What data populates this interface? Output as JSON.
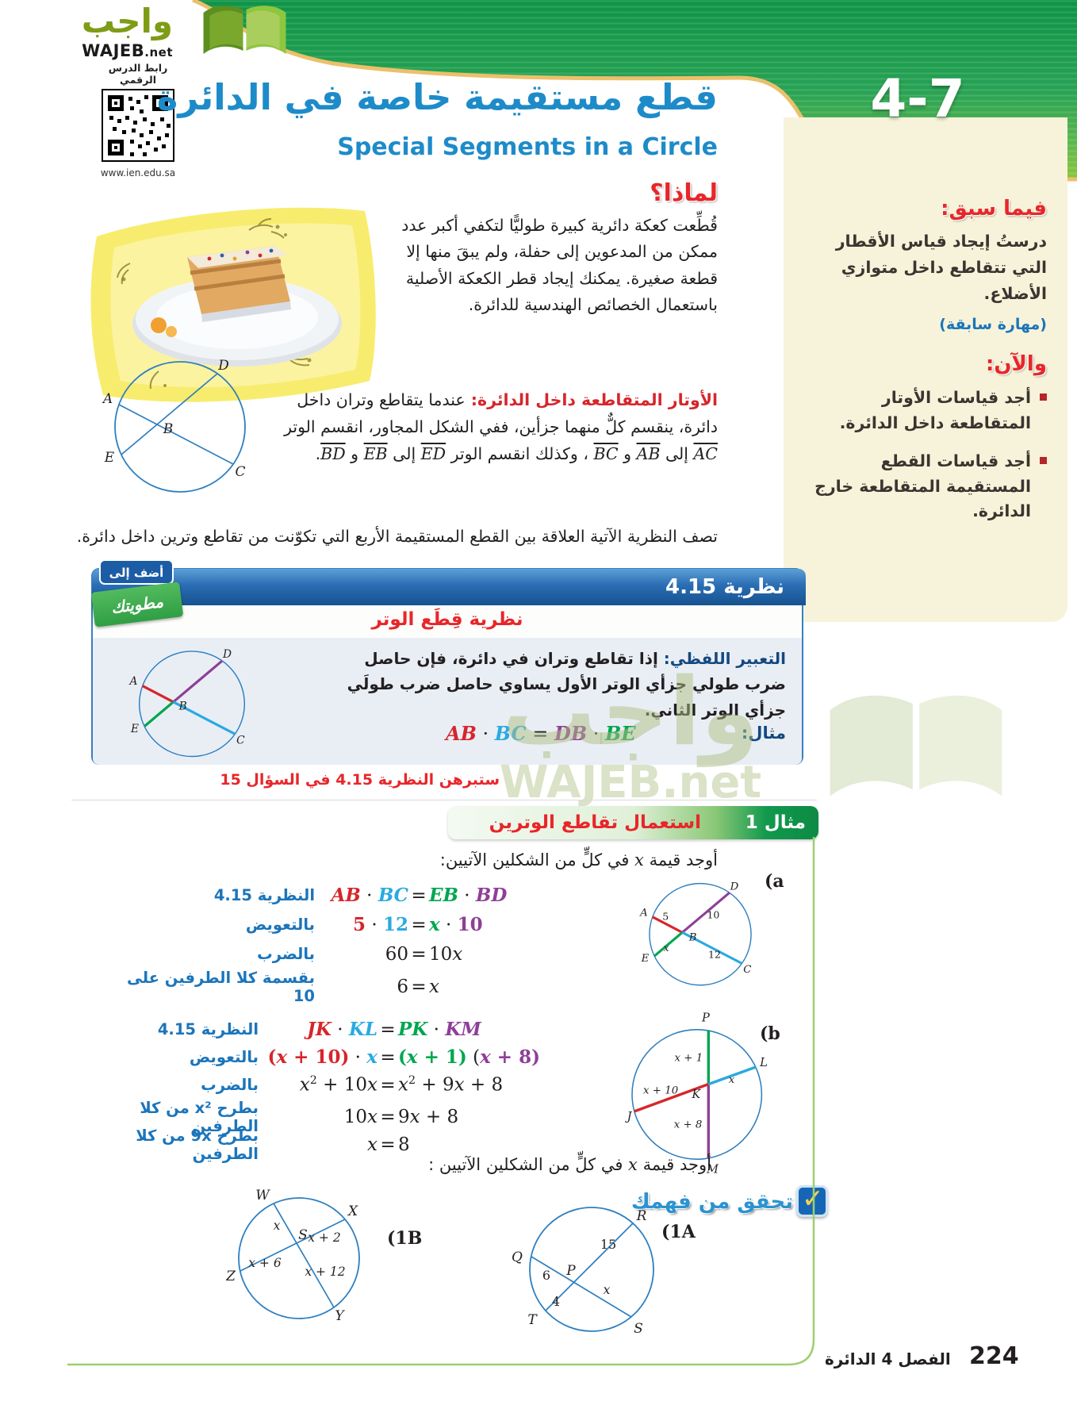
{
  "palette": {
    "red": "#d6262b",
    "cyan": "#29aae1",
    "green": "#00a650",
    "purple": "#8e3f97",
    "anno": "#1b75bb",
    "navy": "#14487f",
    "titleblue": "#1e8bc9",
    "hred": "#e8262a",
    "bandedge": "#ecc06b",
    "linegreen": "#9ccf6e",
    "circle": "#2e7fc0"
  },
  "eq_sign": "=",
  "logo": {
    "arabic": "واجب",
    "latin": "WAJEB",
    "tld": ".net"
  },
  "qr": {
    "label": "رابط الدرس الرقمي",
    "url": "www.ien.edu.sa"
  },
  "lesson_badge": "4-7",
  "title": {
    "ar": "قطع مستقيمة خاصة في الدائرة",
    "en": "Special Segments in a Circle"
  },
  "sidebar": {
    "prev_title": "فيما سبق:",
    "prev_text": "درستُ إيجاد قياس الأقطار التي تتقاطع داخل متوازي الأضلاع.",
    "prev_skill": "(مهارة سابقة)",
    "now_title": "والآن:",
    "bullets": [
      "أجد قياسات الأوتار المتقاطعة داخل الدائرة.",
      "أجد قياسات القطع المستقيمة المتقاطعة خارج الدائرة."
    ]
  },
  "why": {
    "title": "لماذا؟",
    "text": "قُطِّعت كعكة دائرية كبيرة طوليًّا لتكفي أكبر عدد ممكن من المدعوين إلى حفلة، ولم يبقَ منها إلا قطعة صغيرة. يمكنك إيجاد قطر الكعكة الأصلية باستعمال الخصائص الهندسية للدائرة."
  },
  "chords_intro": {
    "tokens": [
      {
        "t": "الأوتار المتقاطعة داخل الدائرة: ",
        "c": "red",
        "b": true
      },
      {
        "t": "عندما يتقاطع وتران داخل دائرة، ينقسم كلٌّ منهما جزأين، ففي الشكل المجاور، انقسم الوتر "
      },
      {
        "t": "AC",
        "i": true,
        "ov": true
      },
      {
        "t": " إلى "
      },
      {
        "t": "AB",
        "i": true,
        "ov": true
      },
      {
        "t": " و "
      },
      {
        "t": "BC",
        "i": true,
        "ov": true
      },
      {
        "t": " ، وكذلك انقسم الوتر "
      },
      {
        "t": "ED",
        "i": true,
        "ov": true
      },
      {
        "t": " إلى "
      },
      {
        "t": "EB",
        "i": true,
        "ov": true
      },
      {
        "t": " و "
      },
      {
        "t": "BD",
        "i": true,
        "ov": true
      },
      {
        "t": "."
      }
    ]
  },
  "theorem_intro": "تصف النظرية الآتية العلاقة بين القطع المستقيمة الأربع التي تكوّنت من تقاطع وترين داخل دائرة.",
  "theorem_box": {
    "number_label": "نظرية 4.15",
    "subtitle": "نظرية قِطَع الوتر",
    "add_to": "أضف إلى",
    "foldable": "مطويتك",
    "verbal_label": "التعبير اللفظي:",
    "verbal_text": " إذا تقاطع وتران في دائرة، فإن حاصل ضرب طولي جزأي الوتر الأول يساوي حاصل ضرب طولَي جزأي الوتر الثاني.",
    "example_label": "مثال:",
    "example_eq": [
      {
        "t": "AB",
        "c": "red",
        "i": true
      },
      {
        "t": " · "
      },
      {
        "t": "BC",
        "c": "cyan",
        "i": true
      },
      {
        "t": " = "
      },
      {
        "t": "DB",
        "c": "purple",
        "i": true
      },
      {
        "t": " · "
      },
      {
        "t": "BE",
        "c": "green",
        "i": true
      }
    ]
  },
  "theorem_proof_note": "ستبرهن النظرية 4.15 في السؤال 15",
  "watermark": {
    "ar": "واجب",
    "latin": "WAJEB.net"
  },
  "example1": {
    "ribbon_label": "مثال 1",
    "ribbon_title": "استعمال تقاطع الوترين",
    "question_tokens": [
      {
        "t": "أوجد قيمة "
      },
      {
        "t": "x",
        "i": true
      },
      {
        "t": " في كلٍّ من الشكلين الآتيين:"
      }
    ],
    "a_label": "(a",
    "a_rows": [
      {
        "note": "النظرية 4.15",
        "lhs": [
          {
            "t": "AB",
            "c": "red",
            "i": true
          },
          {
            "t": " · "
          },
          {
            "t": "BC",
            "c": "cyan",
            "i": true
          }
        ],
        "rhs": [
          {
            "t": "EB",
            "c": "green",
            "i": true
          },
          {
            "t": " · "
          },
          {
            "t": "BD",
            "c": "purple",
            "i": true
          }
        ]
      },
      {
        "note": "بالتعويض",
        "lhs": [
          {
            "t": "5",
            "c": "red"
          },
          {
            "t": " · "
          },
          {
            "t": "12",
            "c": "cyan"
          }
        ],
        "rhs": [
          {
            "t": "x",
            "c": "green",
            "i": true
          },
          {
            "t": " · "
          },
          {
            "t": "10",
            "c": "purple"
          }
        ]
      },
      {
        "note": "بالضرب",
        "lhs": [
          {
            "t": "60"
          }
        ],
        "rhs": [
          {
            "t": "10"
          },
          {
            "t": "x",
            "i": true
          }
        ]
      },
      {
        "note": "بقسمة كلا الطرفين على 10",
        "lhs": [
          {
            "t": "6"
          }
        ],
        "rhs": [
          {
            "t": "x",
            "i": true
          }
        ]
      }
    ],
    "b_label": "(b",
    "b_rows": [
      {
        "note": "النظرية 4.15",
        "lhs": [
          {
            "t": "JK",
            "c": "red",
            "i": true
          },
          {
            "t": " · "
          },
          {
            "t": "KL",
            "c": "cyan",
            "i": true
          }
        ],
        "rhs": [
          {
            "t": "PK",
            "c": "green",
            "i": true
          },
          {
            "t": " · "
          },
          {
            "t": "KM",
            "c": "purple",
            "i": true
          }
        ]
      },
      {
        "note": "بالتعويض",
        "lhs": [
          {
            "t": "(",
            "c": "red"
          },
          {
            "t": "x",
            "c": "red",
            "i": true
          },
          {
            "t": " + 10)",
            "c": "red"
          },
          {
            "t": " · "
          },
          {
            "t": "x",
            "c": "cyan",
            "i": true
          }
        ],
        "rhs": [
          {
            "t": "(",
            "c": "green"
          },
          {
            "t": "x",
            "c": "green",
            "i": true
          },
          {
            "t": " + 1)",
            "c": "green"
          },
          {
            "t": " ("
          },
          {
            "t": "x",
            "c": "purple",
            "i": true
          },
          {
            "t": " + 8)",
            "c": "purple"
          }
        ]
      },
      {
        "note": "بالضرب",
        "lhs": [
          {
            "t": "x",
            "i": true
          },
          {
            "t": "2",
            "sup": true
          },
          {
            "t": " + 10"
          },
          {
            "t": "x",
            "i": true
          }
        ],
        "rhs": [
          {
            "t": "x",
            "i": true
          },
          {
            "t": "2",
            "sup": true
          },
          {
            "t": " + 9"
          },
          {
            "t": "x",
            "i": true
          },
          {
            "t": " + 8"
          }
        ]
      },
      {
        "note": "بطرح x² من كلا الطرفين",
        "lhs": [
          {
            "t": "10"
          },
          {
            "t": "x",
            "i": true
          }
        ],
        "rhs": [
          {
            "t": "9"
          },
          {
            "t": "x",
            "i": true
          },
          {
            "t": " + 8"
          }
        ]
      },
      {
        "note": "بطرح 9x من كلا الطرفين",
        "lhs": [
          {
            "t": "x",
            "i": true
          }
        ],
        "rhs": [
          {
            "t": "8"
          }
        ]
      }
    ]
  },
  "check": {
    "title": "تحقق من فهمك",
    "question_tokens": [
      {
        "t": "أوجد قيمة "
      },
      {
        "t": "x",
        "i": true
      },
      {
        "t": " في كلٍّ من الشكلين الآتيين :"
      }
    ],
    "label_1a": "(1A",
    "label_1b": "(1B"
  },
  "diagrams": {
    "intro": {
      "A": "A",
      "B": "B",
      "C": "C",
      "D": "D",
      "E": "E"
    },
    "a": {
      "A": "A",
      "B": "B",
      "C": "C",
      "D": "D",
      "E": "E",
      "n5": "5",
      "n10": "10",
      "nx": "x",
      "n12": "12"
    },
    "b": {
      "P": "P",
      "L": "L",
      "J": "J",
      "M": "M",
      "K": "K",
      "s_pk": "x + 1",
      "s_kl": "x",
      "s_jk": "x + 10",
      "s_km": "x + 8"
    },
    "oneA": {
      "R": "R",
      "Q": "Q",
      "T": "T",
      "S": "S",
      "P": "P",
      "n15": "15",
      "n6": "6",
      "n4": "4",
      "nx": "x"
    },
    "oneB": {
      "W": "W",
      "X": "X",
      "Z": "Z",
      "Y": "Y",
      "S": "S",
      "s_ws": "x",
      "s_sx": "x + 2",
      "s_zs": "x + 6",
      "s_sy": "x + 12"
    }
  },
  "footer": {
    "page": "224",
    "chapter": "الفصل 4 الدائرة"
  }
}
